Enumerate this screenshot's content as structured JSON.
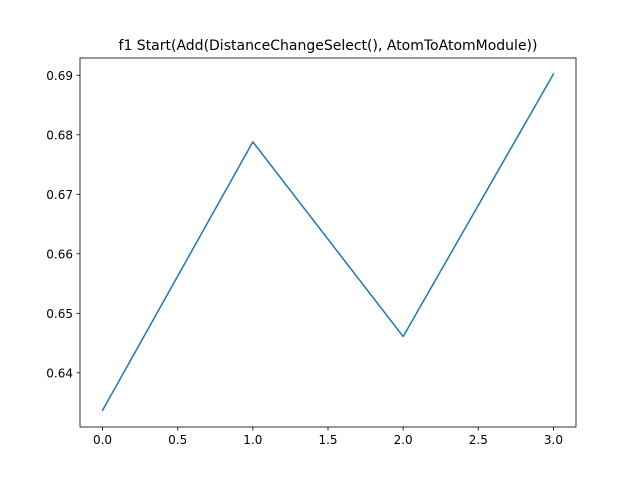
{
  "chart_data": {
    "type": "line",
    "title": "f1 Start(Add(DistanceChangeSelect(), AtomToAtomModule))",
    "xlabel": "",
    "ylabel": "",
    "xlim": [
      -0.15,
      3.15
    ],
    "ylim": [
      0.6309,
      0.6929
    ],
    "xticks": [
      "0.0",
      "0.5",
      "1.0",
      "1.5",
      "2.0",
      "2.5",
      "3.0"
    ],
    "yticks": [
      "0.64",
      "0.65",
      "0.66",
      "0.67",
      "0.68",
      "0.69"
    ],
    "grid": false,
    "series": [
      {
        "color": "#1f77b4",
        "x": [
          0,
          1,
          2,
          3
        ],
        "y": [
          0.6337,
          0.6788,
          0.6461,
          0.6902
        ]
      }
    ]
  }
}
